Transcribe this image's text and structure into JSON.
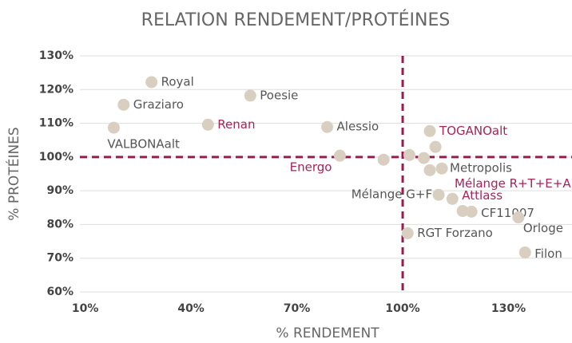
{
  "chart_data": {
    "type": "scatter",
    "title": "RELATION RENDEMENT/PROTÉINES",
    "x_label": "% RENDEMENT",
    "y_label": "% PROTÉINES",
    "xlim": [
      8.5,
      148
    ],
    "ylim": [
      60,
      130
    ],
    "xticks": [
      {
        "value": 10,
        "label": "10%"
      },
      {
        "value": 40,
        "label": "40%"
      },
      {
        "value": 70,
        "label": "70%"
      },
      {
        "value": 100,
        "label": "100%"
      },
      {
        "value": 130,
        "label": "130%"
      }
    ],
    "yticks": [
      {
        "value": 60,
        "label": "60%"
      },
      {
        "value": 70,
        "label": "70%"
      },
      {
        "value": 80,
        "label": "80%"
      },
      {
        "value": 90,
        "label": "90%"
      },
      {
        "value": 100,
        "label": "100%"
      },
      {
        "value": 110,
        "label": "110%"
      },
      {
        "value": 120,
        "label": "120%"
      },
      {
        "value": 130,
        "label": "130%"
      }
    ],
    "grid": true,
    "color": "#d9cfc0",
    "x": [
      28.8,
      20.9,
      18.1,
      44.8,
      56.8,
      78.6,
      82.2,
      94.6,
      101.9,
      106,
      107.7,
      109.3,
      107.7,
      111.1,
      110.2,
      114.1,
      117,
      119.5,
      132.8,
      101.4,
      134.7
    ],
    "values": [
      122.2,
      115.5,
      108.7,
      109.6,
      118.2,
      108.9,
      100.4,
      99.2,
      100.6,
      99.7,
      107.7,
      103,
      96.1,
      96.6,
      88.8,
      87.6,
      84,
      83.8,
      82.1,
      77.4,
      71.7
    ],
    "labels": [
      "Royal",
      "Graziaro",
      "VALBONAalt",
      "Renan",
      "Poesie",
      "Alessio",
      "Energo",
      null,
      null,
      null,
      "TOGANOalt",
      null,
      "Mélange R+T+E+A",
      "Metropolis",
      "Mélange G+F",
      "Attlass",
      null,
      "CF11007",
      "Orloge",
      "RGT Forzano",
      "Filon"
    ],
    "label_colors": [
      "#555555",
      "#555555",
      "#555555",
      "#a8225a",
      "#555555",
      "#555555",
      "#a8225a",
      null,
      null,
      null,
      "#a8225a",
      null,
      "#a8225a",
      "#555555",
      "#555555",
      "#a8225a",
      null,
      "#555555",
      "#555555",
      "#555555",
      "#555555"
    ],
    "reference_lines": {
      "x": 100,
      "y": 100,
      "color": "#9b1b4e"
    }
  }
}
